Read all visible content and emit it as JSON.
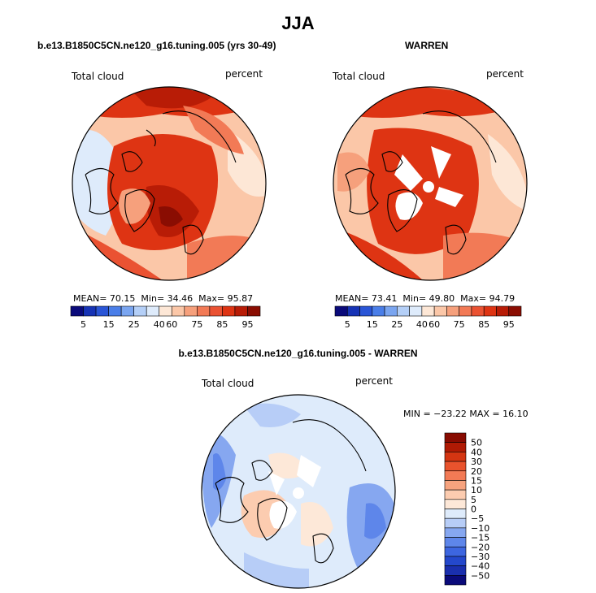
{
  "main_title": "JJA",
  "panels": [
    {
      "title": "b.e13.B1850C5CN.ne120_g16.tuning.005 (yrs 30-49)",
      "variable": "Total cloud",
      "units": "percent",
      "stats": {
        "mean_label": "MEAN=",
        "mean": "70.15",
        "min_label": "Min=",
        "min": "34.46",
        "max_label": "Max=",
        "max": "95.87"
      }
    },
    {
      "title": "WARREN",
      "variable": "Total cloud",
      "units": "percent",
      "stats": {
        "mean_label": "MEAN=",
        "mean": "73.41",
        "min_label": "Min=",
        "min": "49.80",
        "max_label": "Max=",
        "max": "94.79"
      }
    },
    {
      "title": "b.e13.B1850C5CN.ne120_g16.tuning.005 - WARREN",
      "variable": "Total cloud",
      "units": "percent",
      "minmax": "MIN = −23.22  MAX =  16.10"
    }
  ],
  "chart_data": [
    {
      "type": "heatmap",
      "title": "b.e13.B1850C5CN.ne120_g16.tuning.005 (yrs 30-49)",
      "projection": "north polar stereographic",
      "variable": "Total cloud",
      "units": "percent",
      "mean": 70.15,
      "min": 34.46,
      "max": 95.87,
      "colorbar": {
        "colors": [
          "#0a0a7a",
          "#1633b5",
          "#2a55d6",
          "#4a7ee8",
          "#7aa5f0",
          "#b4cff7",
          "#deebfb",
          "#fde7d6",
          "#fbc7a8",
          "#f6a07c",
          "#f27a56",
          "#ea5232",
          "#de3413",
          "#b81c06",
          "#8a0d02"
        ],
        "tick_labels": [
          "5",
          "15",
          "25",
          "40",
          "60",
          "75",
          "85",
          "95"
        ]
      }
    },
    {
      "type": "heatmap",
      "title": "WARREN",
      "projection": "north polar stereographic",
      "variable": "Total cloud",
      "units": "percent",
      "mean": 73.41,
      "min": 49.8,
      "max": 94.79,
      "colorbar": {
        "colors": [
          "#0a0a7a",
          "#1633b5",
          "#2a55d6",
          "#4a7ee8",
          "#7aa5f0",
          "#b4cff7",
          "#deebfb",
          "#fde7d6",
          "#fbc7a8",
          "#f6a07c",
          "#f27a56",
          "#ea5232",
          "#de3413",
          "#b81c06",
          "#8a0d02"
        ],
        "tick_labels": [
          "5",
          "15",
          "25",
          "40",
          "60",
          "75",
          "85",
          "95"
        ]
      }
    },
    {
      "type": "heatmap",
      "title": "b.e13.B1850C5CN.ne120_g16.tuning.005 - WARREN",
      "projection": "north polar stereographic",
      "variable": "Total cloud",
      "units": "percent",
      "min": -23.22,
      "max": 16.1,
      "colorbar": {
        "colors": [
          "#0a0a7a",
          "#1a2fae",
          "#2448cc",
          "#3d66e0",
          "#5e86ea",
          "#86a7f0",
          "#b7cdf7",
          "#deebfb",
          "#fde8d8",
          "#fcccb0",
          "#f7a37e",
          "#f37a55",
          "#e9532d",
          "#d43512",
          "#b01a04",
          "#880b01"
        ],
        "tick_labels": [
          "50",
          "40",
          "30",
          "20",
          "15",
          "10",
          "5",
          "0",
          "−5",
          "−10",
          "−15",
          "−20",
          "−30",
          "−40",
          "−50"
        ]
      }
    }
  ]
}
